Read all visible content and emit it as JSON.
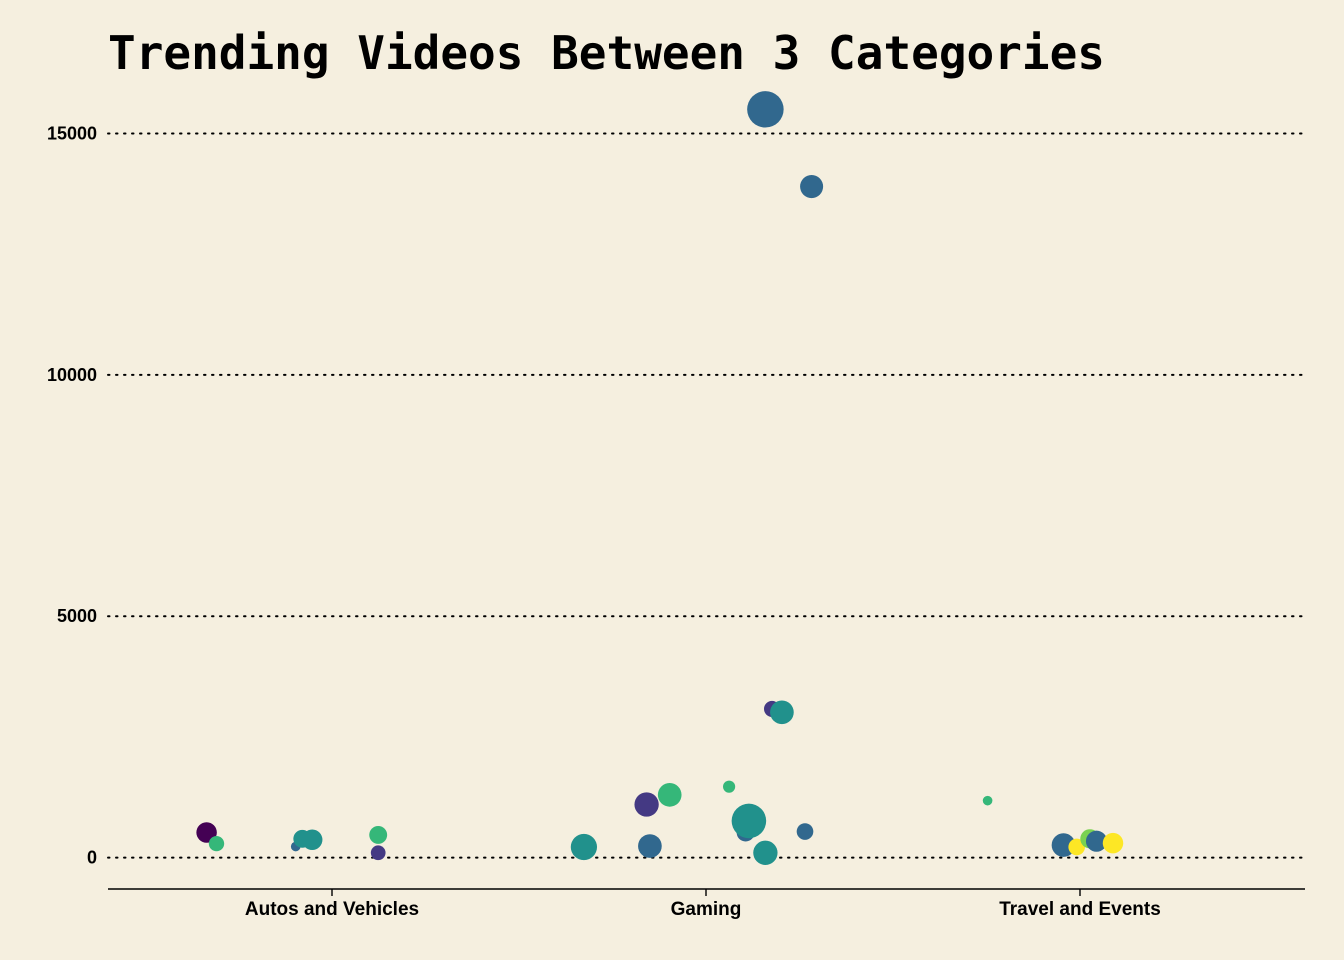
{
  "chart_data": {
    "type": "scatter",
    "title": "Trending Videos Between 3 Categories",
    "xlabel": "",
    "ylabel": "",
    "categories": [
      "Autos and Vehicles",
      "Gaming",
      "Travel and Events"
    ],
    "ylim": [
      -650,
      15900
    ],
    "yticks": [
      0,
      5000,
      10000,
      15000
    ],
    "grid": "horizontal-dotted",
    "legend": "none",
    "points": [
      {
        "category": "Autos and Vehicles",
        "offset": -0.38,
        "y": 520,
        "size": 3.2,
        "color": "#440154"
      },
      {
        "category": "Autos and Vehicles",
        "offset": -0.35,
        "y": 290,
        "size": 2.4,
        "color": "#35b779"
      },
      {
        "category": "Autos and Vehicles",
        "offset": -0.11,
        "y": 230,
        "size": 1.5,
        "color": "#31688e"
      },
      {
        "category": "Autos and Vehicles",
        "offset": -0.09,
        "y": 390,
        "size": 2.8,
        "color": "#21918c"
      },
      {
        "category": "Autos and Vehicles",
        "offset": -0.06,
        "y": 370,
        "size": 3.2,
        "color": "#21918c"
      },
      {
        "category": "Autos and Vehicles",
        "offset": 0.14,
        "y": 470,
        "size": 2.8,
        "color": "#35b779"
      },
      {
        "category": "Autos and Vehicles",
        "offset": 0.14,
        "y": 100,
        "size": 2.3,
        "color": "#443983"
      },
      {
        "category": "Gaming",
        "offset": -0.37,
        "y": 220,
        "size": 4.1,
        "color": "#21918c"
      },
      {
        "category": "Gaming",
        "offset": -0.18,
        "y": 1100,
        "size": 3.8,
        "color": "#443983"
      },
      {
        "category": "Gaming",
        "offset": -0.17,
        "y": 240,
        "size": 3.7,
        "color": "#31688e"
      },
      {
        "category": "Gaming",
        "offset": -0.11,
        "y": 1300,
        "size": 3.7,
        "color": "#35b779"
      },
      {
        "category": "Gaming",
        "offset": 0.07,
        "y": 1470,
        "size": 1.9,
        "color": "#35b779"
      },
      {
        "category": "Gaming",
        "offset": 0.12,
        "y": 520,
        "size": 2.8,
        "color": "#31688e"
      },
      {
        "category": "Gaming",
        "offset": 0.13,
        "y": 760,
        "size": 5.4,
        "color": "#21918c"
      },
      {
        "category": "Gaming",
        "offset": 0.18,
        "y": 15500,
        "size": 5.7,
        "color": "#31688e"
      },
      {
        "category": "Gaming",
        "offset": 0.18,
        "y": 100,
        "size": 3.8,
        "color": "#21918c"
      },
      {
        "category": "Gaming",
        "offset": 0.2,
        "y": 3080,
        "size": 2.5,
        "color": "#443983"
      },
      {
        "category": "Gaming",
        "offset": 0.23,
        "y": 3010,
        "size": 3.7,
        "color": "#21918c"
      },
      {
        "category": "Gaming",
        "offset": 0.3,
        "y": 540,
        "size": 2.6,
        "color": "#31688e"
      },
      {
        "category": "Gaming",
        "offset": 0.32,
        "y": 13900,
        "size": 3.6,
        "color": "#31688e"
      },
      {
        "category": "Travel and Events",
        "offset": -0.28,
        "y": 1180,
        "size": 1.5,
        "color": "#35b779"
      },
      {
        "category": "Travel and Events",
        "offset": -0.05,
        "y": 260,
        "size": 3.7,
        "color": "#31688e"
      },
      {
        "category": "Travel and Events",
        "offset": -0.01,
        "y": 220,
        "size": 2.6,
        "color": "#fde725"
      },
      {
        "category": "Travel and Events",
        "offset": 0.03,
        "y": 390,
        "size": 3.0,
        "color": "#7ad151"
      },
      {
        "category": "Travel and Events",
        "offset": 0.05,
        "y": 340,
        "size": 3.3,
        "color": "#31688e"
      },
      {
        "category": "Travel and Events",
        "offset": 0.1,
        "y": 300,
        "size": 3.2,
        "color": "#fde725"
      }
    ]
  }
}
